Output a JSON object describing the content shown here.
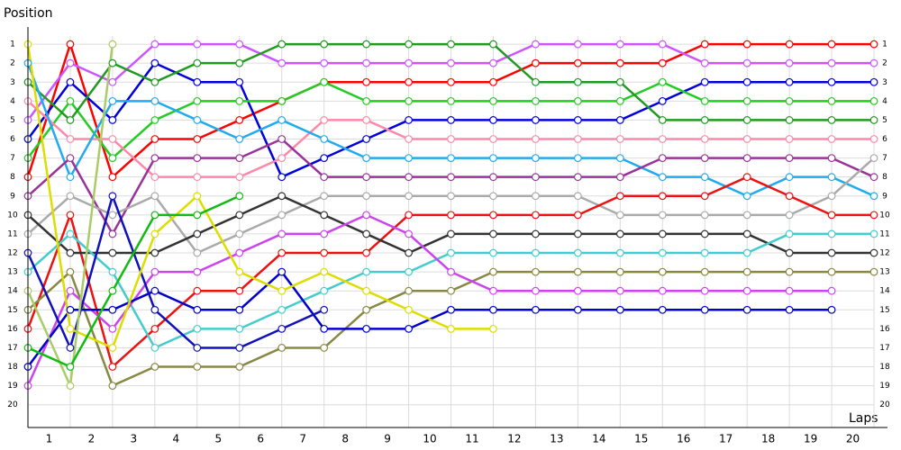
{
  "chart_data": {
    "type": "line",
    "y_label": "Position",
    "x_label": "Laps",
    "x": [
      0,
      1,
      2,
      3,
      4,
      5,
      6,
      7,
      8,
      9,
      10,
      11,
      12,
      13,
      14,
      15,
      16,
      17,
      18,
      19,
      20
    ],
    "xlim": [
      0,
      20.5
    ],
    "xticks": [
      {
        "value": 0.5,
        "label": "1"
      },
      {
        "value": 1.5,
        "label": "2"
      },
      {
        "value": 2.5,
        "label": "3"
      },
      {
        "value": 3.5,
        "label": "4"
      },
      {
        "value": 4.5,
        "label": "5"
      },
      {
        "value": 5.5,
        "label": "6"
      },
      {
        "value": 6.5,
        "label": "7"
      },
      {
        "value": 7.5,
        "label": "8"
      },
      {
        "value": 8.5,
        "label": "9"
      },
      {
        "value": 9.5,
        "label": "10"
      },
      {
        "value": 10.5,
        "label": "11"
      },
      {
        "value": 11.5,
        "label": "12"
      },
      {
        "value": 12.5,
        "label": "13"
      },
      {
        "value": 13.5,
        "label": "14"
      },
      {
        "value": 14.5,
        "label": "15"
      },
      {
        "value": 15.5,
        "label": "16"
      },
      {
        "value": 16.5,
        "label": "17"
      },
      {
        "value": 17.5,
        "label": "18"
      },
      {
        "value": 18.5,
        "label": "19"
      },
      {
        "value": 19.5,
        "label": "20"
      }
    ],
    "ylim": [
      21.2,
      0
    ],
    "yticks": [
      1,
      2,
      3,
      4,
      5,
      6,
      7,
      8,
      9,
      10,
      11,
      12,
      13,
      14,
      15,
      16,
      17,
      18,
      19,
      20
    ],
    "grid": true,
    "series": [
      {
        "color": "#ff0000",
        "values": [
          8,
          1,
          8,
          6,
          6,
          5,
          4,
          3,
          3,
          3,
          3,
          3,
          2,
          2,
          2,
          2,
          1,
          1,
          1,
          1,
          1
        ]
      },
      {
        "color": "#cc55ff",
        "values": [
          5,
          2,
          3,
          1,
          1,
          1,
          2,
          2,
          2,
          2,
          2,
          2,
          1,
          1,
          1,
          1,
          2,
          2,
          2,
          2,
          2
        ]
      },
      {
        "color": "#0000dd",
        "values": [
          6,
          3,
          5,
          2,
          3,
          3,
          8,
          7,
          6,
          5,
          5,
          5,
          5,
          5,
          5,
          4,
          3,
          3,
          3,
          3,
          3
        ]
      },
      {
        "color": "#22cc22",
        "values": [
          7,
          4,
          7,
          5,
          4,
          4,
          4,
          3,
          4,
          4,
          4,
          4,
          4,
          4,
          4,
          3,
          4,
          4,
          4,
          4,
          4
        ]
      },
      {
        "color": "#229922",
        "values": [
          3,
          5,
          2,
          3,
          2,
          2,
          1,
          1,
          1,
          1,
          1,
          1,
          3,
          3,
          3,
          5,
          5,
          5,
          5,
          5,
          5
        ]
      },
      {
        "color": "#ff88aa",
        "values": [
          4,
          6,
          6,
          8,
          8,
          8,
          7,
          5,
          5,
          6,
          6,
          6,
          6,
          6,
          6,
          6,
          6,
          6,
          6,
          6,
          6
        ]
      },
      {
        "color": "#22aaee",
        "values": [
          2,
          8,
          4,
          4,
          5,
          6,
          5,
          6,
          7,
          7,
          7,
          7,
          7,
          7,
          7,
          8,
          8,
          9,
          8,
          8,
          9
        ]
      },
      {
        "color": "#993399",
        "values": [
          9,
          7,
          11,
          7,
          7,
          7,
          6,
          8,
          8,
          8,
          8,
          8,
          8,
          8,
          8,
          7,
          7,
          7,
          7,
          7,
          8
        ]
      },
      {
        "color": "#aaaaaa",
        "values": [
          11,
          9,
          10,
          9,
          12,
          11,
          10,
          9,
          9,
          9,
          9,
          9,
          9,
          9,
          10,
          10,
          10,
          10,
          10,
          9,
          7
        ]
      },
      {
        "color": "#ee1111",
        "values": [
          16,
          10,
          18,
          16,
          14,
          14,
          12,
          12,
          12,
          10,
          10,
          10,
          10,
          10,
          9,
          9,
          9,
          8,
          9,
          10,
          10
        ]
      },
      {
        "color": "#333333",
        "values": [
          10,
          12,
          12,
          12,
          11,
          10,
          9,
          10,
          11,
          12,
          11,
          11,
          11,
          11,
          11,
          11,
          11,
          11,
          12,
          12,
          12
        ]
      },
      {
        "color": "#44cccc",
        "values": [
          13,
          11,
          13,
          17,
          16,
          16,
          15,
          14,
          13,
          13,
          12,
          12,
          12,
          12,
          12,
          12,
          12,
          12,
          11,
          11,
          11
        ]
      },
      {
        "color": "#888844",
        "values": [
          15,
          13,
          19,
          18,
          18,
          18,
          17,
          17,
          15,
          14,
          14,
          13,
          13,
          13,
          13,
          13,
          13,
          13,
          13,
          13,
          13
        ]
      },
      {
        "color": "#cc44ee",
        "values": [
          19,
          14,
          16,
          13,
          13,
          12,
          11,
          11,
          10,
          11,
          13,
          14,
          14,
          14,
          14,
          14,
          14,
          14,
          14,
          14,
          null
        ]
      },
      {
        "color": "#0000cc",
        "values": [
          18,
          15,
          15,
          14,
          15,
          15,
          13,
          16,
          16,
          16,
          15,
          15,
          15,
          15,
          15,
          15,
          15,
          15,
          15,
          15,
          null
        ]
      },
      {
        "color": "#1111bb",
        "values": [
          12,
          17,
          9,
          15,
          17,
          17,
          16,
          15,
          null,
          null,
          null,
          null,
          null,
          null,
          null,
          null,
          null,
          null,
          null,
          null,
          null
        ]
      },
      {
        "color": "#dddd00",
        "values": [
          1,
          16,
          17,
          11,
          9,
          13,
          14,
          13,
          14,
          15,
          16,
          16,
          null,
          null,
          null,
          null,
          null,
          null,
          null,
          null,
          null
        ]
      },
      {
        "color": "#aacc66",
        "values": [
          14,
          19,
          1,
          null,
          null,
          null,
          null,
          null,
          null,
          null,
          null,
          null,
          null,
          null,
          null,
          null,
          null,
          null,
          null,
          null,
          null
        ]
      },
      {
        "color": "#11bb11",
        "values": [
          17,
          18,
          14,
          10,
          10,
          9,
          null,
          null,
          null,
          null,
          null,
          null,
          null,
          null,
          null,
          null,
          null,
          null,
          null,
          null,
          null
        ]
      }
    ]
  }
}
